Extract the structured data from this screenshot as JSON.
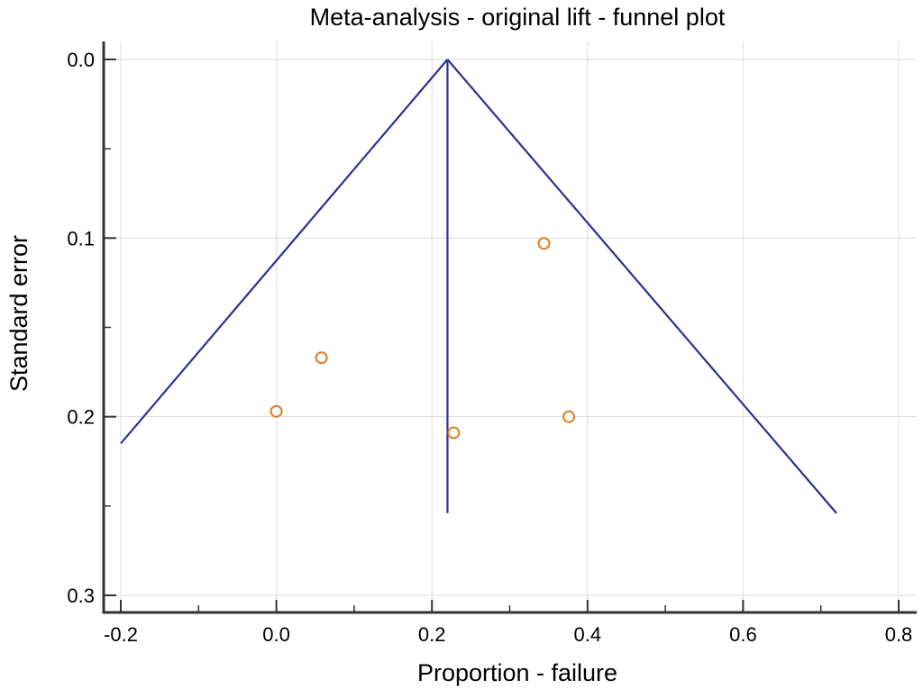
{
  "chart_data": {
    "type": "scatter",
    "title": "Meta-analysis - original lift - funnel plot",
    "xlabel": "Proportion - failure",
    "ylabel": "Standard error",
    "xlim": [
      -0.2,
      0.8
    ],
    "ylim": [
      0.0,
      0.3
    ],
    "y_inverted": true,
    "x_ticks": [
      "-0.2",
      "0.0",
      "0.2",
      "0.4",
      "0.6",
      "0.8"
    ],
    "y_ticks": [
      "0.0",
      "0.1",
      "0.2",
      "0.3"
    ],
    "grid": true,
    "points": [
      {
        "x": 0.0,
        "y": 0.197
      },
      {
        "x": 0.058,
        "y": 0.167
      },
      {
        "x": 0.228,
        "y": 0.209
      },
      {
        "x": 0.344,
        "y": 0.103
      },
      {
        "x": 0.376,
        "y": 0.2
      }
    ],
    "funnel": {
      "apex": {
        "x": 0.22,
        "y": 0.0
      },
      "left_end": {
        "x": -0.2,
        "y": 0.215
      },
      "right_end": {
        "x": 0.72,
        "y": 0.254
      },
      "center_line_end": {
        "x": 0.22,
        "y": 0.254
      }
    },
    "colors": {
      "funnel": "#2e3192",
      "points": "#e07b1f",
      "grid": "#dcdcdc",
      "axis": "#333333"
    }
  }
}
